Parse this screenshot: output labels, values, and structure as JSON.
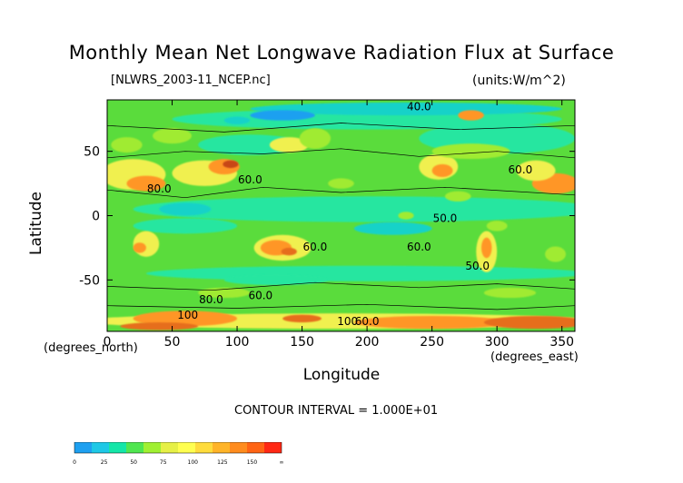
{
  "chart_data": {
    "type": "heatmap",
    "title": "Monthly Mean Net Longwave Radiation Flux at Surface",
    "file_label": "[NLWRS_2003-11_NCEP.nc]",
    "units_label": "(units:W/m^2)",
    "xlabel": "Longitude",
    "ylabel": "Latitude",
    "x_unit_label": "(degrees_east)",
    "y_unit_label": "(degrees_north)",
    "xlim": [
      0,
      360
    ],
    "ylim": [
      -90,
      90
    ],
    "x_ticks": [
      "0",
      "50",
      "100",
      "150",
      "200",
      "250",
      "300",
      "350"
    ],
    "x_tick_values": [
      0,
      50,
      100,
      150,
      200,
      250,
      300,
      350
    ],
    "y_ticks": [
      "50",
      "0",
      "-50"
    ],
    "y_tick_values": [
      50,
      0,
      -50
    ],
    "contour_interval_text": "CONTOUR INTERVAL = 1.000E+01",
    "contour_labels": [
      {
        "text": "40.0",
        "x": 240,
        "y": 82
      },
      {
        "text": "80.0",
        "x": 40,
        "y": 18
      },
      {
        "text": "60.0",
        "x": 110,
        "y": 25
      },
      {
        "text": "60.0",
        "x": 318,
        "y": 33
      },
      {
        "text": "50.0",
        "x": 260,
        "y": -5
      },
      {
        "text": "60.0",
        "x": 160,
        "y": -27
      },
      {
        "text": "60.0",
        "x": 240,
        "y": -27
      },
      {
        "text": "50.0",
        "x": 285,
        "y": -42
      },
      {
        "text": "80.0",
        "x": 80,
        "y": -68
      },
      {
        "text": "60.0",
        "x": 118,
        "y": -65
      },
      {
        "text": "100",
        "x": 62,
        "y": -80
      },
      {
        "text": "100",
        "x": 185,
        "y": -85
      },
      {
        "text": "60.0",
        "x": 200,
        "y": -85
      }
    ],
    "colorbar": {
      "labels": [
        "0",
        "25",
        "50",
        "75",
        "100",
        "125",
        "150",
        "∞"
      ],
      "colors": [
        "#1ea0f0",
        "#1ec8e6",
        "#14e6a8",
        "#50e650",
        "#a0f032",
        "#e6f046",
        "#ffff50",
        "#ffdc3c",
        "#ffb428",
        "#ff8c1e",
        "#ff6414",
        "#ff2814"
      ]
    },
    "field_colors": {
      "c30": "#1ea0f0",
      "c40": "#14d2c8",
      "c50": "#28e6a0",
      "c60": "#5adc3c",
      "c70": "#a0eb32",
      "c80": "#f0f050",
      "c90": "#ffc83c",
      "c100": "#ff9628",
      "c120": "#e66e1e",
      "c140": "#c84614"
    }
  }
}
